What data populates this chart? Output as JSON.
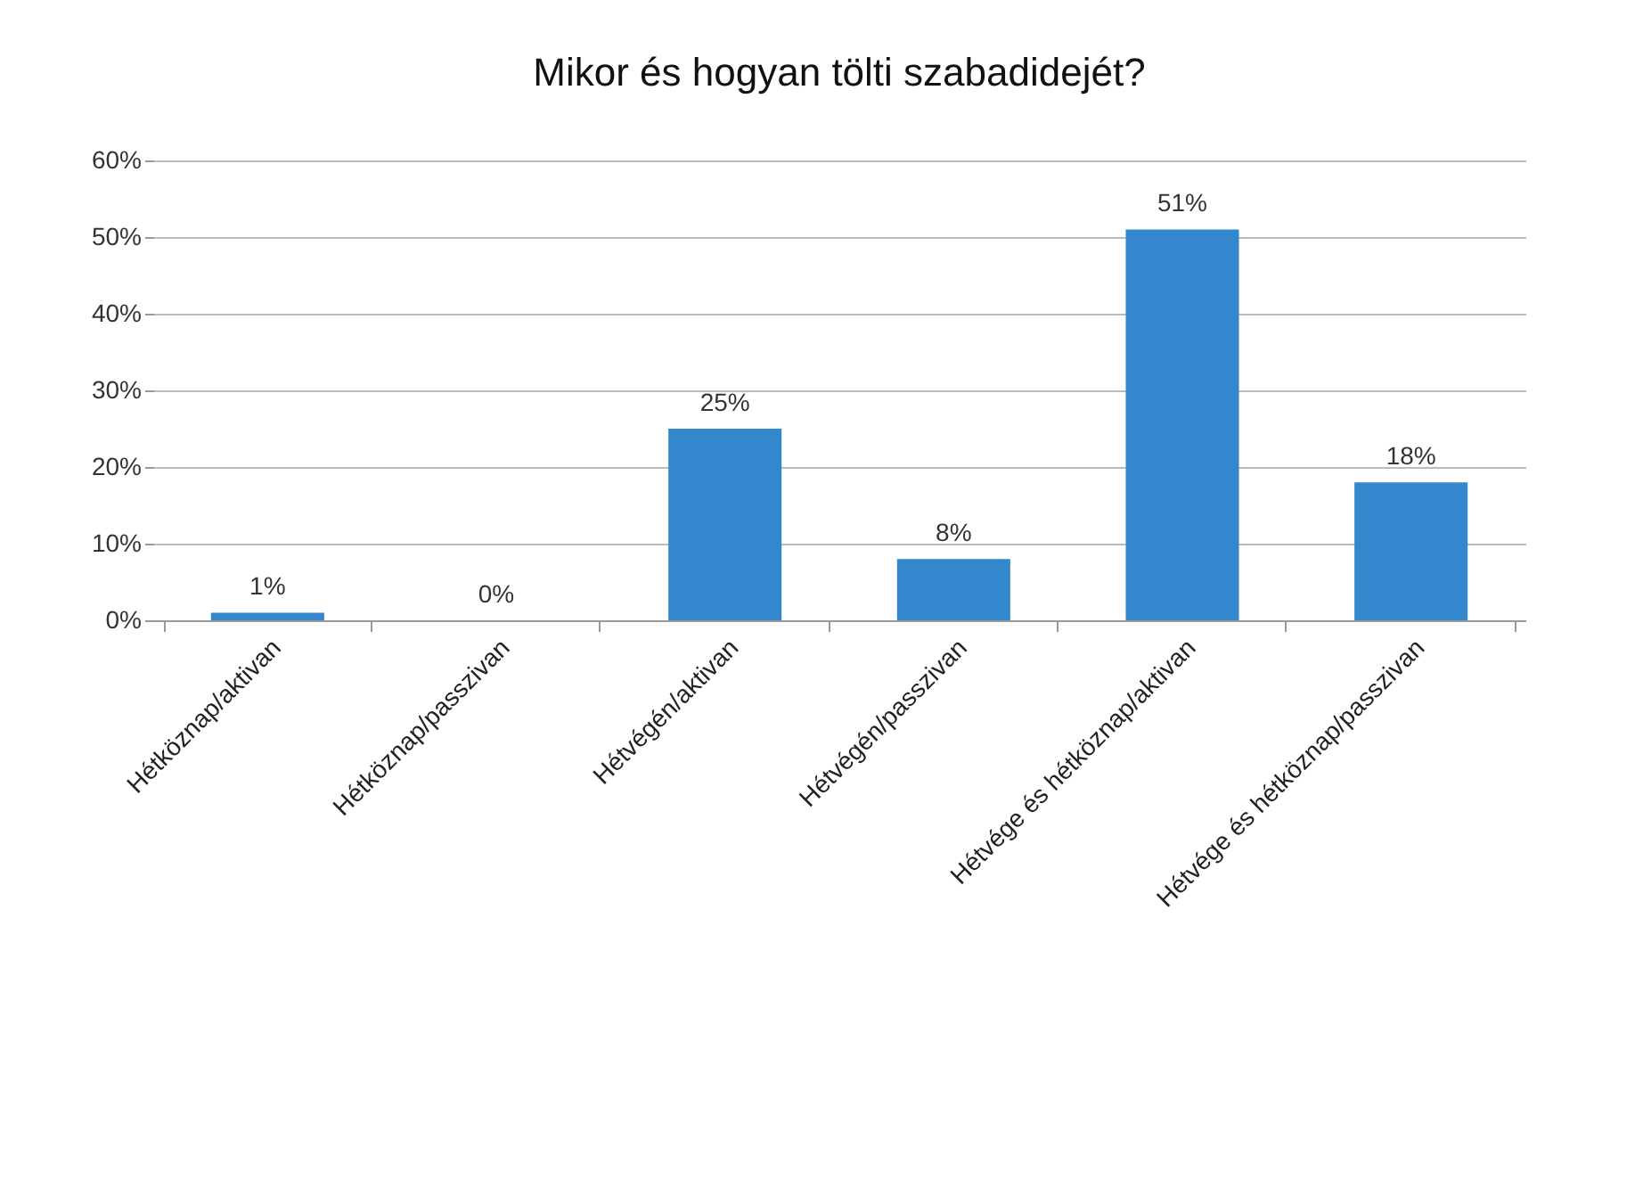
{
  "chart_data": {
    "type": "bar",
    "title": "Mikor és hogyan tölti szabadidejét?",
    "categories": [
      "Hétköznap/aktivan",
      "Hétköznap/passzivan",
      "Hétvégén/aktivan",
      "Hétvégén/passzivan",
      "Hétvége és hétköznap/aktivan",
      "Hétvége és hétköznap/passzivan"
    ],
    "values": [
      1,
      0,
      25,
      8,
      51,
      18
    ],
    "value_labels": [
      "1%",
      "0%",
      "25%",
      "8%",
      "51%",
      "18%"
    ],
    "color": "#3387cc",
    "ylim": [
      0,
      60
    ],
    "yticks": [
      {
        "value": 0,
        "label": "0%"
      },
      {
        "value": 10,
        "label": "10%"
      },
      {
        "value": 20,
        "label": "20%"
      },
      {
        "value": 30,
        "label": "30%"
      },
      {
        "value": 40,
        "label": "40%"
      },
      {
        "value": 50,
        "label": "50%"
      },
      {
        "value": 60,
        "label": "60%"
      }
    ],
    "grid": "y"
  }
}
